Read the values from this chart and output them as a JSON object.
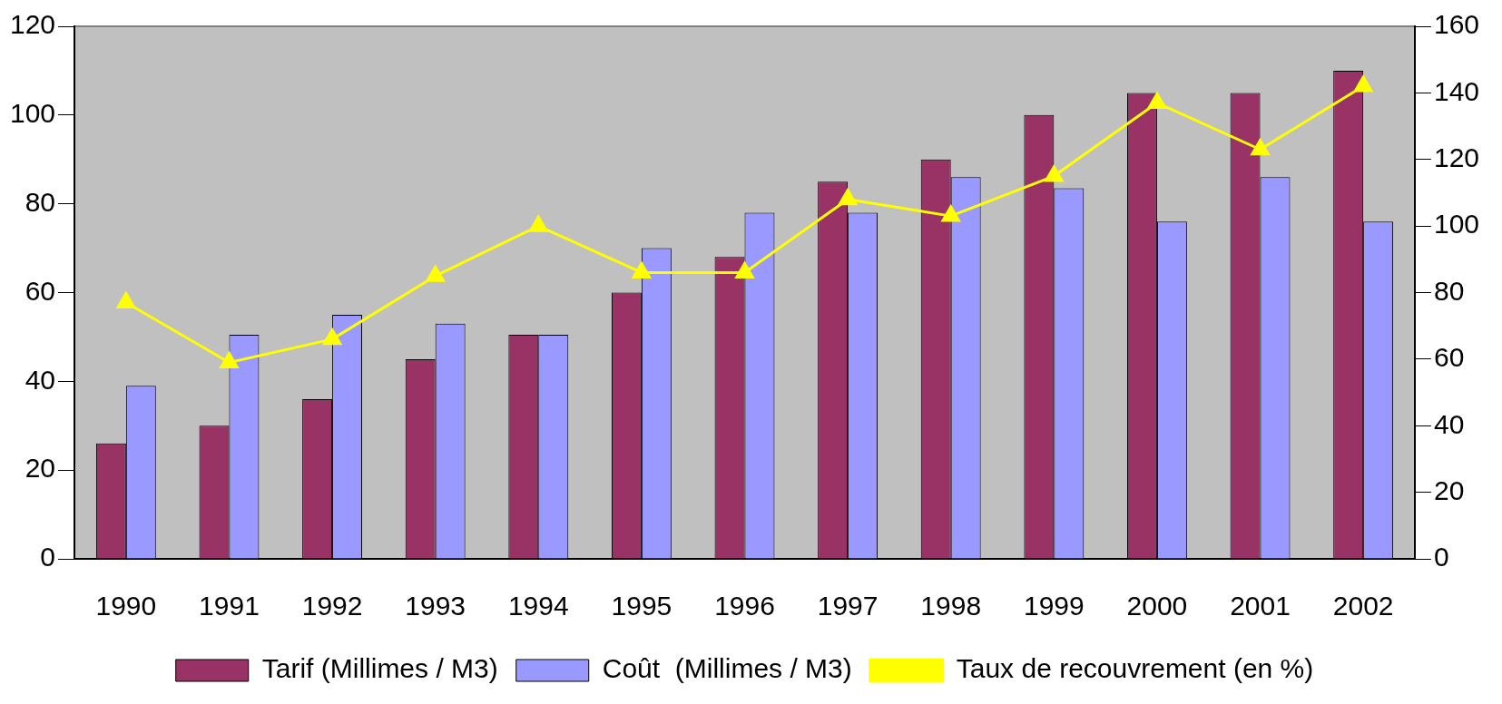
{
  "chart_data": {
    "type": "bar",
    "categories": [
      "1990",
      "1991",
      "1992",
      "1993",
      "1994",
      "1995",
      "1996",
      "1997",
      "1998",
      "1999",
      "2000",
      "2001",
      "2002"
    ],
    "series": [
      {
        "name": "Tarif (Millimes / M3)",
        "color": "#993366",
        "values": [
          26,
          30,
          36,
          45,
          50.5,
          60,
          68,
          85,
          90,
          100,
          105,
          105,
          110
        ]
      },
      {
        "name": "Coût  (Millimes / M3)",
        "color": "#9999ff",
        "values": [
          39,
          50.5,
          55,
          53,
          50.5,
          70,
          78,
          78,
          86,
          83.5,
          76,
          86,
          76
        ]
      },
      {
        "name": "Taux de recouvrement (en %)",
        "type": "line",
        "axis": "y2",
        "color": "#ffff00",
        "marker": "triangle",
        "values": [
          77,
          59,
          66,
          85,
          100,
          86,
          86,
          108,
          103,
          115,
          137,
          123,
          142
        ]
      }
    ],
    "ylim": [
      0,
      120
    ],
    "yticks": [
      0,
      20,
      40,
      60,
      80,
      100,
      120
    ],
    "y2lim": [
      0,
      160
    ],
    "y2ticks": [
      0,
      20,
      40,
      60,
      80,
      100,
      120,
      140,
      160
    ],
    "grid": false,
    "legend": "bottom"
  }
}
